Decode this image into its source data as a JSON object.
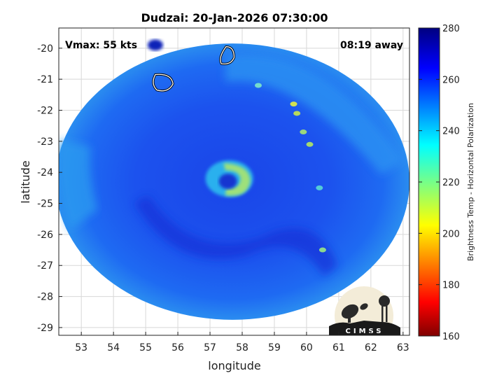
{
  "chart_data": {
    "type": "heatmap",
    "title": "Dudzai: 20-Jan-2026 07:30:00",
    "annotations": {
      "vmax": "Vmax: 55 kts",
      "time_away": "08:19 away"
    },
    "xlabel": "longitude",
    "ylabel": "latitude",
    "xlim": [
      52.3,
      63.2
    ],
    "ylim": [
      -29.25,
      -19.35
    ],
    "x_ticks": [
      53,
      54,
      55,
      56,
      57,
      58,
      59,
      60,
      61,
      62,
      63
    ],
    "y_ticks": [
      -20,
      -21,
      -22,
      -23,
      -24,
      -25,
      -26,
      -27,
      -28,
      -29
    ],
    "grid": true,
    "colorbar": {
      "label": "Brightness Temp - Horizontal Polarization",
      "range": [
        160,
        280
      ],
      "ticks": [
        160,
        180,
        200,
        220,
        240,
        260,
        280
      ],
      "colormap": "jet"
    },
    "swath": {
      "center_lon": 57.7,
      "center_lat": -24.3,
      "radius_lon": 5.5,
      "radius_lat": 4.45
    },
    "eye_center": {
      "lon": 57.6,
      "lat": -24.2
    },
    "logo": "CIMSS",
    "colors": {
      "background_tb": "#1438e0",
      "cold_band_tb": "#2a9af0",
      "warm_eyewall_tb": "#c8e43c"
    }
  }
}
